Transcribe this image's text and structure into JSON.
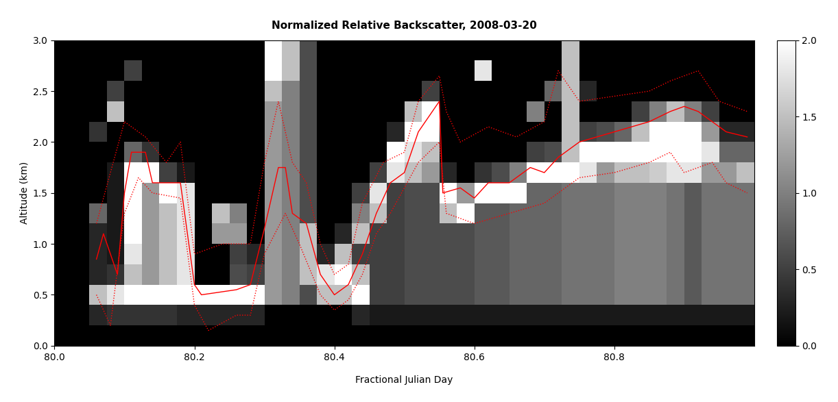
{
  "chart_data": {
    "type": "heatmap",
    "title": "Normalized Relative Backscatter, 2008-03-20",
    "xlabel": "Fractional Julian Day",
    "ylabel": "Altitude (km)",
    "xlim": [
      80.0,
      81.0
    ],
    "xticks": [
      80.0,
      80.2,
      80.4,
      80.6,
      80.8
    ],
    "ylim": [
      0.0,
      3.0
    ],
    "yticks": [
      0.0,
      0.5,
      1.0,
      1.5,
      2.0,
      2.5,
      3.0
    ],
    "x": [
      80.0,
      80.025,
      80.05,
      80.075,
      80.1,
      80.125,
      80.15,
      80.175,
      80.2,
      80.225,
      80.25,
      80.275,
      80.3,
      80.325,
      80.35,
      80.375,
      80.4,
      80.425,
      80.45,
      80.475,
      80.5,
      80.525,
      80.55,
      80.575,
      80.6,
      80.625,
      80.65,
      80.675,
      80.7,
      80.725,
      80.75,
      80.775,
      80.8,
      80.825,
      80.85,
      80.875,
      80.9,
      80.925,
      80.95,
      80.975,
      81.0
    ],
    "y": [
      0.0,
      0.2,
      0.4,
      0.6,
      0.8,
      1.0,
      1.2,
      1.4,
      1.6,
      1.8,
      2.0,
      2.2,
      2.4,
      2.6,
      2.8,
      3.0
    ],
    "cells": [
      [
        0,
        0,
        0,
        0,
        0,
        0,
        0,
        0,
        0,
        0,
        0,
        0,
        0,
        0,
        0
      ],
      [
        0,
        0,
        0,
        0,
        0,
        0,
        0,
        0,
        0,
        0,
        0,
        0,
        0,
        0,
        0
      ],
      [
        0,
        0.3,
        1.5,
        0.3,
        0.3,
        0.3,
        0.8,
        0,
        0,
        0,
        0.4,
        0,
        0,
        0,
        0
      ],
      [
        0,
        0.4,
        1.8,
        0.4,
        0.2,
        0.2,
        0.2,
        0.2,
        0.2,
        0,
        0,
        1.5,
        0.5,
        0,
        0
      ],
      [
        0,
        0.4,
        2,
        1.5,
        1.8,
        2,
        2,
        2,
        2,
        0.8,
        0,
        0,
        0,
        0.5,
        0
      ],
      [
        0,
        0.4,
        2,
        1.2,
        1.2,
        1.2,
        1.2,
        1.2,
        2,
        0.4,
        0,
        0,
        0,
        0,
        0
      ],
      [
        0,
        0.4,
        2,
        1.5,
        1.5,
        1.5,
        1.5,
        2,
        0.5,
        0,
        0,
        0,
        0,
        0,
        0
      ],
      [
        0,
        0.3,
        2,
        1.8,
        1.8,
        1.8,
        1.8,
        1.8,
        0.2,
        0,
        0,
        0,
        0,
        0,
        0
      ],
      [
        0,
        0.3,
        2,
        0,
        0,
        0,
        0,
        0,
        0,
        0,
        0,
        0,
        0,
        0,
        0
      ],
      [
        0,
        0.3,
        2,
        0,
        0,
        1.2,
        1.5,
        0,
        0,
        0,
        0,
        0,
        0,
        0,
        0
      ],
      [
        0,
        0.3,
        2,
        0.6,
        0.5,
        1.2,
        1.0,
        0,
        0,
        0,
        0,
        0,
        0,
        0,
        0
      ],
      [
        0,
        0.3,
        2,
        0.5,
        0.3,
        0,
        0,
        0,
        0,
        0,
        0,
        0,
        0,
        0,
        0
      ],
      [
        0,
        0,
        1.2,
        1.2,
        1.2,
        1.2,
        1.2,
        1.2,
        1.2,
        1.2,
        1.2,
        1.2,
        1.5,
        2,
        2
      ],
      [
        0,
        0,
        1.0,
        1.0,
        1.0,
        1.0,
        1.0,
        1.0,
        1.0,
        1.0,
        1.0,
        1.0,
        1.0,
        1.5,
        1.5
      ],
      [
        0,
        0,
        0.6,
        1.5,
        1.5,
        1.5,
        0.6,
        0.6,
        0.6,
        0.6,
        0.6,
        0.6,
        0.6,
        0.6,
        0.6
      ],
      [
        0,
        0,
        1.5,
        1.8,
        0.3,
        0,
        0,
        0,
        0,
        0,
        0,
        0,
        0,
        0,
        0
      ],
      [
        0,
        0,
        1.5,
        2,
        1.5,
        0.3,
        0,
        0,
        0,
        0,
        0,
        0,
        0,
        0,
        0
      ],
      [
        0,
        0.3,
        2,
        1.5,
        0.5,
        1.5,
        1.0,
        0.5,
        0,
        0,
        0,
        0,
        0,
        0,
        0
      ],
      [
        0,
        0.2,
        0.5,
        0.5,
        0.5,
        0.5,
        1.5,
        1.8,
        0.5,
        0,
        0,
        0,
        0,
        0,
        0
      ],
      [
        0,
        0.2,
        0.5,
        0.5,
        0.5,
        0.5,
        0.5,
        0.5,
        1.8,
        2,
        0.3,
        0,
        0,
        0,
        0
      ],
      [
        0,
        0.2,
        0.6,
        0.6,
        0.6,
        0.6,
        0.6,
        0.6,
        1.5,
        1.8,
        2,
        1.5,
        0,
        0,
        0
      ],
      [
        0,
        0.2,
        0.6,
        0.6,
        0.6,
        0.6,
        0.6,
        0.6,
        1.2,
        1.5,
        2,
        2,
        0.5,
        0,
        0
      ],
      [
        0,
        0.2,
        0.6,
        0.6,
        0.6,
        0.6,
        1.5,
        2,
        0.3,
        0,
        0,
        0,
        0,
        0,
        0
      ],
      [
        0,
        0.2,
        0.6,
        0.6,
        0.6,
        0.6,
        2,
        1.2,
        0,
        0,
        0,
        0,
        0,
        0,
        0
      ],
      [
        0,
        0.2,
        0.7,
        0.7,
        0.7,
        0.7,
        0.7,
        2,
        0.4,
        0,
        0,
        0,
        0,
        1.8,
        0
      ],
      [
        0,
        0.2,
        0.7,
        0.7,
        0.7,
        0.7,
        0.7,
        2,
        0.6,
        0,
        0,
        0,
        0,
        0,
        0
      ],
      [
        0,
        0.2,
        0.8,
        0.8,
        0.8,
        0.8,
        0.8,
        2,
        1.0,
        0,
        0,
        0,
        0,
        0,
        0
      ],
      [
        0,
        0.2,
        0.8,
        0.8,
        0.8,
        0.8,
        0.8,
        0.8,
        2,
        0.5,
        0,
        1.0,
        0,
        0,
        0
      ],
      [
        0,
        0.2,
        0.8,
        0.8,
        0.8,
        0.8,
        0.8,
        0.8,
        2,
        0.6,
        0,
        0,
        0.8,
        0,
        0
      ],
      [
        0,
        0.2,
        0.9,
        0.9,
        0.9,
        0.9,
        0.9,
        0.9,
        2,
        1.5,
        1.5,
        1.5,
        1.5,
        1.5,
        1.5
      ],
      [
        0,
        0.2,
        0.9,
        0.9,
        0.9,
        0.9,
        0.9,
        0.9,
        1.8,
        2,
        0.5,
        0,
        0.3,
        0,
        0
      ],
      [
        0,
        0.2,
        0.9,
        0.9,
        0.9,
        0.9,
        0.9,
        0.9,
        1.2,
        2,
        0.6,
        0,
        0,
        0,
        0
      ],
      [
        0,
        0.2,
        1.0,
        1.0,
        1.0,
        1.0,
        1.0,
        1.0,
        1.5,
        2,
        0.8,
        0,
        0,
        0,
        0
      ],
      [
        0,
        0.2,
        1.0,
        1.0,
        1.0,
        1.0,
        1.0,
        1.0,
        1.5,
        2,
        1.5,
        0.5,
        0,
        0,
        0
      ],
      [
        0,
        0.2,
        1.0,
        1.0,
        1.0,
        1.0,
        1.0,
        1.0,
        1.6,
        2,
        2,
        1.0,
        0,
        0,
        0
      ],
      [
        0,
        0.2,
        0.9,
        0.9,
        0.9,
        0.9,
        0.9,
        0.9,
        1.8,
        2,
        2,
        1.5,
        0,
        0,
        0
      ],
      [
        0,
        0.2,
        0.7,
        0.7,
        0.7,
        0.7,
        0.7,
        0.7,
        1.8,
        2,
        2,
        1.0,
        0,
        0,
        0
      ],
      [
        0,
        0.2,
        0.9,
        0.9,
        0.9,
        0.9,
        0.9,
        0.9,
        1.2,
        1.8,
        1.2,
        0.5,
        0,
        0,
        0
      ],
      [
        0,
        0.2,
        0.9,
        0.9,
        0.9,
        0.9,
        0.9,
        0.9,
        1.2,
        0.8,
        0.3,
        0,
        0,
        0,
        0
      ],
      [
        0,
        0.2,
        0.9,
        0.9,
        0.9,
        0.9,
        0.9,
        0.9,
        1.5,
        0.8,
        0.3,
        0,
        0,
        0,
        0
      ]
    ],
    "colorbar": {
      "range": [
        0.0,
        2.0
      ],
      "ticks": [
        0.0,
        0.5,
        1.0,
        1.5,
        2.0
      ]
    },
    "series": [
      {
        "type": "line",
        "color": "#ff0000",
        "line_style": "solid",
        "x": [
          80.06,
          80.07,
          80.09,
          80.1,
          80.11,
          80.13,
          80.14,
          80.18,
          80.2,
          80.21,
          80.26,
          80.28,
          80.3,
          80.32,
          80.33,
          80.34,
          80.36,
          80.38,
          80.4,
          80.42,
          80.44,
          80.46,
          80.48,
          80.5,
          80.52,
          80.55,
          80.555,
          80.58,
          80.6,
          80.62,
          80.65,
          80.68,
          80.7,
          80.72,
          80.75,
          80.8,
          80.85,
          80.88,
          80.9,
          80.92,
          80.94,
          80.96,
          80.99
        ],
        "values": [
          0.85,
          1.1,
          0.7,
          1.5,
          1.9,
          1.9,
          1.6,
          1.6,
          0.6,
          0.5,
          0.55,
          0.6,
          1.15,
          1.75,
          1.75,
          1.3,
          1.2,
          0.7,
          0.5,
          0.6,
          0.9,
          1.3,
          1.6,
          1.7,
          2.1,
          2.4,
          1.5,
          1.55,
          1.45,
          1.6,
          1.6,
          1.75,
          1.7,
          1.85,
          2.0,
          2.1,
          2.2,
          2.3,
          2.35,
          2.3,
          2.2,
          2.1,
          2.05
        ]
      },
      {
        "type": "line",
        "color": "#ff0000",
        "line_style": "dotted",
        "x": [
          80.06,
          80.08,
          80.1,
          80.13,
          80.16,
          80.18,
          80.2,
          80.24,
          80.28,
          80.3,
          80.32,
          80.34,
          80.36,
          80.38,
          80.4,
          80.42,
          80.44,
          80.47,
          80.5,
          80.52,
          80.55,
          80.56,
          80.58,
          80.62,
          80.66,
          80.7,
          80.72,
          80.75,
          80.8,
          80.85,
          80.88,
          80.92,
          80.95,
          80.99
        ],
        "values": [
          1.2,
          1.7,
          2.2,
          2.05,
          1.8,
          2.0,
          0.9,
          1.0,
          1.0,
          1.8,
          2.4,
          1.8,
          1.6,
          1.0,
          0.7,
          0.8,
          1.4,
          1.8,
          1.9,
          2.4,
          2.65,
          2.3,
          2.0,
          2.15,
          2.05,
          2.2,
          2.7,
          2.4,
          2.45,
          2.5,
          2.6,
          2.7,
          2.4,
          2.3
        ]
      },
      {
        "type": "line",
        "color": "#ff0000",
        "line_style": "dotted",
        "x": [
          80.06,
          80.08,
          80.1,
          80.12,
          80.14,
          80.18,
          80.2,
          80.22,
          80.26,
          80.28,
          80.3,
          80.33,
          80.35,
          80.38,
          80.4,
          80.42,
          80.44,
          80.46,
          80.48,
          80.52,
          80.55,
          80.56,
          80.6,
          80.65,
          80.7,
          80.72,
          80.75,
          80.8,
          80.85,
          80.88,
          80.9,
          80.94,
          80.96,
          80.99
        ],
        "values": [
          0.5,
          0.2,
          1.3,
          1.65,
          1.5,
          1.45,
          0.4,
          0.15,
          0.3,
          0.3,
          0.9,
          1.3,
          1.0,
          0.5,
          0.35,
          0.45,
          0.7,
          1.1,
          1.3,
          1.8,
          2.0,
          1.3,
          1.2,
          1.3,
          1.4,
          1.5,
          1.65,
          1.7,
          1.8,
          1.9,
          1.7,
          1.8,
          1.6,
          1.5
        ]
      }
    ]
  }
}
